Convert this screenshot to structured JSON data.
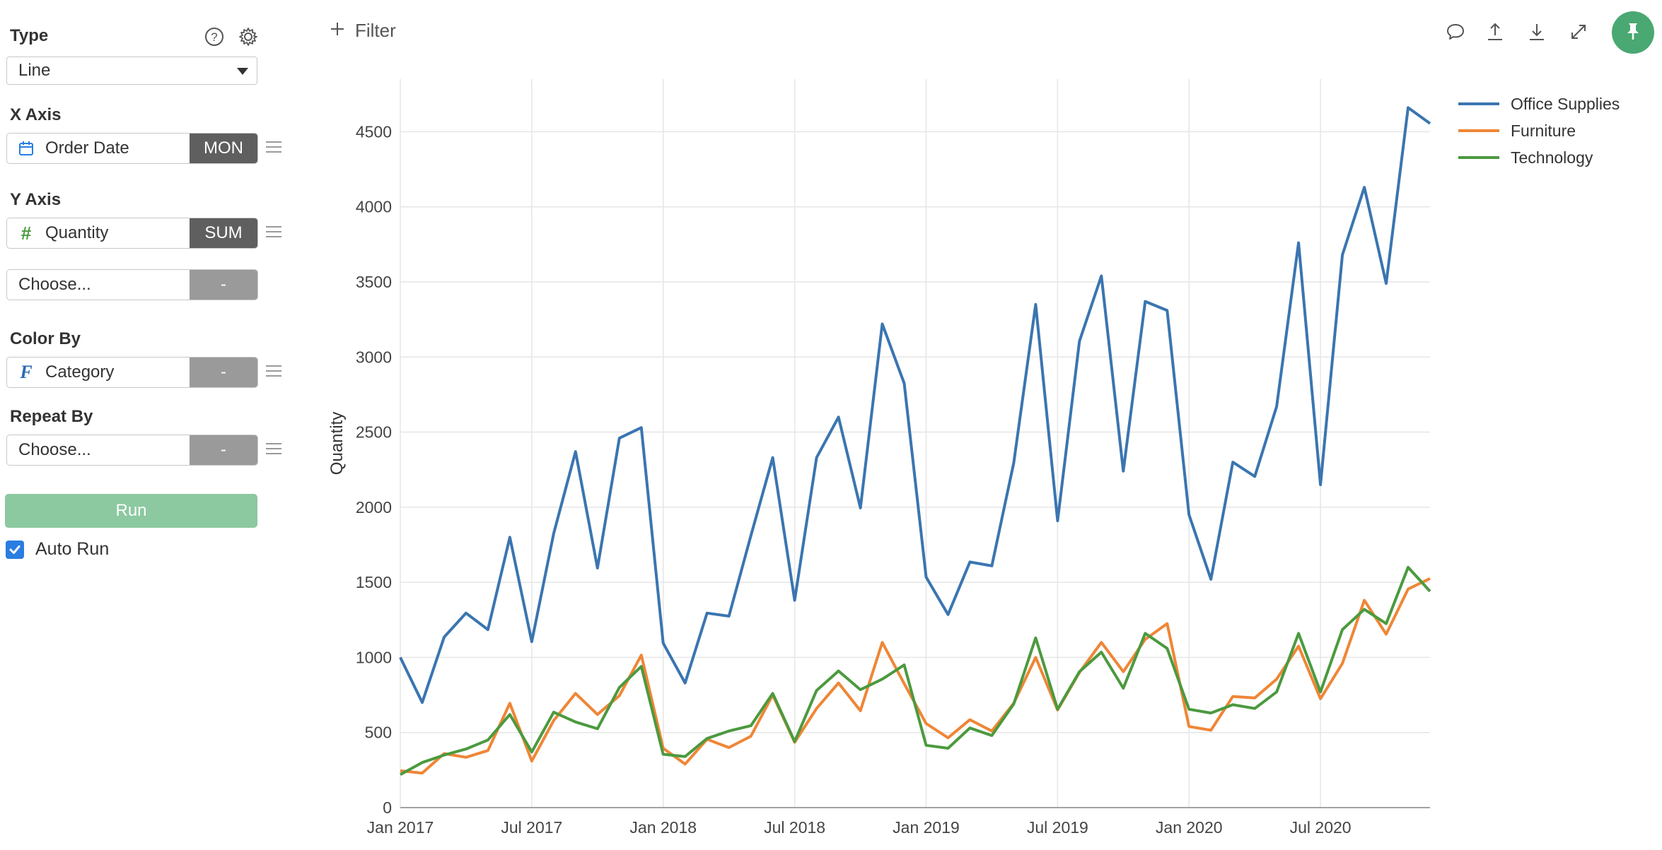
{
  "sidebar": {
    "type": {
      "label": "Type",
      "value": "Line"
    },
    "x_axis": {
      "label": "X Axis",
      "field": "Order Date",
      "agg": "MON"
    },
    "y_axis": {
      "label": "Y Axis",
      "field": "Quantity",
      "agg": "SUM"
    },
    "y_axis_extra": {
      "field": "Choose...",
      "agg": "-"
    },
    "color_by": {
      "label": "Color By",
      "field": "Category",
      "agg": "-",
      "type_glyph": "F"
    },
    "repeat_by": {
      "label": "Repeat By",
      "field": "Choose...",
      "agg": "-"
    },
    "run_label": "Run",
    "auto_run_label": "Auto Run",
    "auto_run_checked": true
  },
  "toolbar": {
    "filter_label": "Filter"
  },
  "icons": {
    "help": "help-circle-icon",
    "settings": "gear-icon",
    "comment": "comment-icon",
    "upload": "upload-icon",
    "download": "download-icon",
    "expand": "expand-icon",
    "pin": "pin-icon"
  },
  "chart_data": {
    "type": "line",
    "ylabel": "Quantity",
    "xlabel": "",
    "ylim": [
      0,
      4850
    ],
    "yticks": [
      0,
      500,
      1000,
      1500,
      2000,
      2500,
      3000,
      3500,
      4000,
      4500
    ],
    "xtick_labels": [
      "Jan 2017",
      "Jul 2017",
      "Jan 2018",
      "Jul 2018",
      "Jan 2019",
      "Jul 2019",
      "Jan 2020",
      "Jul 2020"
    ],
    "xtick_index": [
      0,
      6,
      12,
      18,
      24,
      30,
      36,
      42
    ],
    "x": [
      "Jan 2017",
      "Feb 2017",
      "Mar 2017",
      "Apr 2017",
      "May 2017",
      "Jun 2017",
      "Jul 2017",
      "Aug 2017",
      "Sep 2017",
      "Oct 2017",
      "Nov 2017",
      "Dec 2017",
      "Jan 2018",
      "Feb 2018",
      "Mar 2018",
      "Apr 2018",
      "May 2018",
      "Jun 2018",
      "Jul 2018",
      "Aug 2018",
      "Sep 2018",
      "Oct 2018",
      "Nov 2018",
      "Dec 2018",
      "Jan 2019",
      "Feb 2019",
      "Mar 2019",
      "Apr 2019",
      "May 2019",
      "Jun 2019",
      "Jul 2019",
      "Aug 2019",
      "Sep 2019",
      "Oct 2019",
      "Nov 2019",
      "Dec 2019",
      "Jan 2020",
      "Feb 2020",
      "Mar 2020",
      "Apr 2020",
      "May 2020",
      "Jun 2020",
      "Jul 2020",
      "Aug 2020",
      "Sep 2020",
      "Oct 2020",
      "Nov 2020",
      "Dec 2020"
    ],
    "legend_position": "top-right",
    "grid": true,
    "series": [
      {
        "name": "Office Supplies",
        "color": "#3a75b0",
        "values": [
          1000,
          700,
          1135,
          1295,
          1185,
          1800,
          1105,
          1825,
          2370,
          1595,
          2460,
          2530,
          1095,
          830,
          1295,
          1275,
          1810,
          2330,
          1380,
          2330,
          2600,
          1995,
          3220,
          2825,
          1535,
          1285,
          1635,
          1610,
          2295,
          3350,
          1910,
          3105,
          3540,
          2240,
          3370,
          3310,
          1950,
          1520,
          2300,
          2205,
          2670,
          3760,
          2150,
          3680,
          4130,
          3490,
          4660,
          4555
        ]
      },
      {
        "name": "Furniture",
        "color": "#ef8636",
        "values": [
          245,
          230,
          360,
          335,
          380,
          695,
          310,
          580,
          760,
          620,
          745,
          1015,
          395,
          290,
          455,
          400,
          475,
          750,
          435,
          660,
          830,
          645,
          1100,
          825,
          560,
          465,
          585,
          510,
          695,
          1000,
          650,
          900,
          1100,
          905,
          1120,
          1225,
          540,
          515,
          740,
          730,
          855,
          1075,
          725,
          960,
          1380,
          1155,
          1455,
          1525
        ]
      },
      {
        "name": "Technology",
        "color": "#4b9a3e",
        "values": [
          220,
          300,
          350,
          390,
          450,
          620,
          370,
          635,
          570,
          525,
          800,
          940,
          355,
          340,
          460,
          510,
          545,
          760,
          440,
          780,
          910,
          785,
          855,
          950,
          415,
          395,
          530,
          480,
          690,
          1130,
          655,
          905,
          1035,
          795,
          1160,
          1060,
          655,
          630,
          685,
          660,
          770,
          1160,
          770,
          1185,
          1320,
          1225,
          1600,
          1440
        ]
      }
    ]
  }
}
